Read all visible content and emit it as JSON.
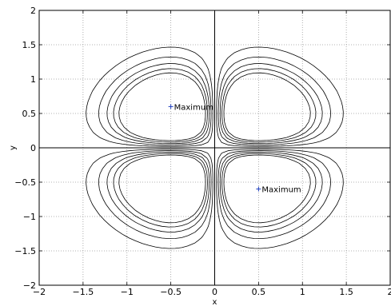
{
  "chart_data": {
    "type": "contour",
    "title": "",
    "xlabel": "x",
    "ylabel": "y",
    "xlim": [
      -2,
      2
    ],
    "ylim": [
      -2,
      2
    ],
    "xticks": [
      -2,
      -1.5,
      -1,
      -0.5,
      0,
      0.5,
      1,
      1.5,
      2
    ],
    "yticks": [
      -2,
      -1.5,
      -1,
      -0.5,
      0,
      0.5,
      1,
      1.5,
      2
    ],
    "xtick_labels": [
      "−2",
      "−1.5",
      "−1",
      "−0.5",
      "0",
      "0.5",
      "1",
      "1.5",
      "2"
    ],
    "ytick_labels": [
      "−2",
      "−1.5",
      "−1",
      "−0.5",
      "0",
      "0.5",
      "1",
      "1.5",
      "2"
    ],
    "grid": true,
    "function_shape": "four lobes centred near (±0.5, ±0.5)",
    "lobe_centers": [
      [
        -0.5,
        0.5
      ],
      [
        0.5,
        0.5
      ],
      [
        -0.5,
        -0.5
      ],
      [
        0.5,
        -0.5
      ]
    ],
    "contour_levels": [
      0.1,
      0.2,
      0.3,
      0.4,
      0.5
    ],
    "reference_lines": {
      "x": 0,
      "y": 0
    },
    "markers": [
      {
        "x": -0.5,
        "y": 0.6,
        "label": "Maximum"
      },
      {
        "x": 0.5,
        "y": -0.6,
        "label": "Maximum"
      }
    ],
    "colors": {
      "contour": "#000000",
      "marker": "#1f3fbf",
      "grid": "#9a9a9a"
    }
  }
}
